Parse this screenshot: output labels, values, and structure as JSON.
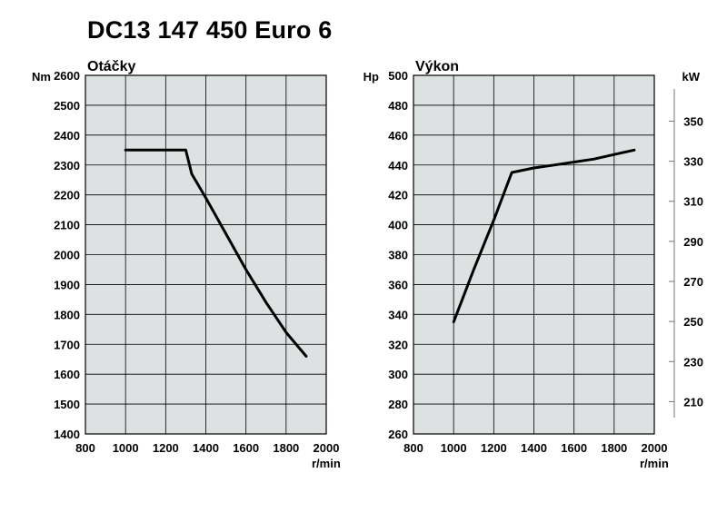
{
  "title": "DC13 147 450 Euro 6",
  "chart_data": [
    {
      "type": "line",
      "title": "Otáčky",
      "ylabel": "Nm",
      "xlabel": "r/min",
      "xlim": [
        800,
        2000
      ],
      "ylim": [
        1400,
        2600
      ],
      "xticks": [
        800,
        1000,
        1200,
        1400,
        1600,
        1800,
        2000
      ],
      "yticks": [
        1400,
        1500,
        1600,
        1700,
        1800,
        1900,
        2000,
        2100,
        2200,
        2300,
        2400,
        2500,
        2600
      ],
      "grid": true,
      "series": [
        {
          "x": [
            1000,
            1300,
            1330,
            1400,
            1500,
            1600,
            1700,
            1800,
            1900
          ],
          "y": [
            2350,
            2350,
            2270,
            2190,
            2070,
            1950,
            1840,
            1740,
            1660
          ]
        }
      ]
    },
    {
      "type": "line",
      "title": "Výkon",
      "ylabel": "Hp",
      "ylabel_right": "kW",
      "xlabel": "r/min",
      "xlim": [
        800,
        2000
      ],
      "ylim": [
        260,
        500
      ],
      "xticks": [
        800,
        1000,
        1200,
        1400,
        1600,
        1800,
        2000
      ],
      "yticks": [
        260,
        280,
        300,
        320,
        340,
        360,
        380,
        400,
        420,
        440,
        460,
        480,
        500
      ],
      "yticks_right": [
        210,
        230,
        250,
        270,
        290,
        310,
        330,
        350
      ],
      "grid": true,
      "series": [
        {
          "x": [
            1000,
            1100,
            1200,
            1290,
            1400,
            1500,
            1600,
            1700,
            1800,
            1900
          ],
          "y": [
            335,
            370,
            403,
            435,
            438,
            440,
            442,
            444,
            447,
            450
          ]
        }
      ]
    }
  ]
}
